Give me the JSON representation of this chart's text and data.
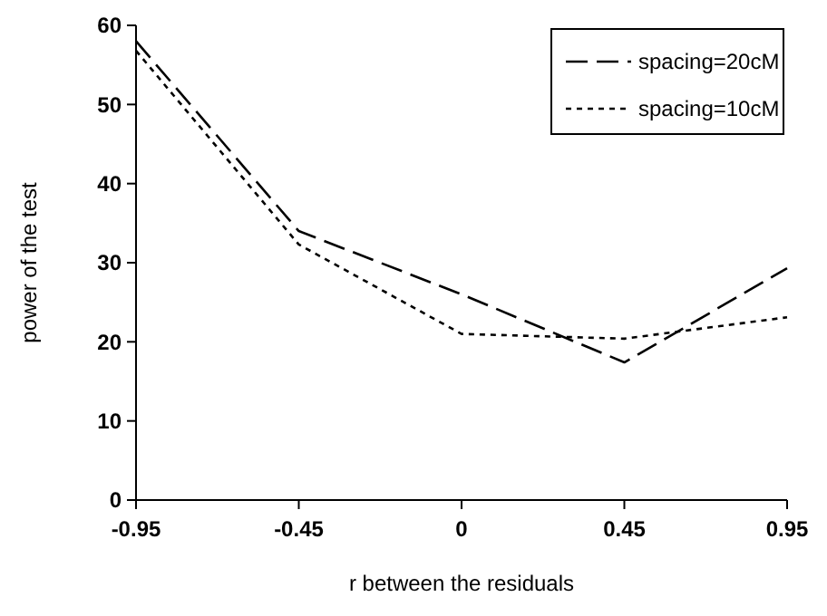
{
  "chart_data": {
    "type": "line",
    "xlabel": "r between the residuals",
    "ylabel": "power of the test",
    "categories": [
      "-0.95",
      "-0.45",
      "0",
      "0.45",
      "0.95"
    ],
    "series": [
      {
        "name": "spacing=20cM",
        "color": "#000000",
        "line_style": "dashed",
        "values": [
          58,
          34,
          26,
          17.4,
          29.3
        ]
      },
      {
        "name": "spacing=10cM",
        "color": "#000000",
        "line_style": "dotted",
        "values": [
          56.8,
          32.3,
          21,
          20.4,
          23.1
        ]
      }
    ],
    "ylim": [
      0,
      60
    ],
    "yticks": [
      0,
      10,
      20,
      30,
      40,
      50,
      60
    ],
    "grid": false,
    "legend": "top right",
    "marker": "none"
  }
}
